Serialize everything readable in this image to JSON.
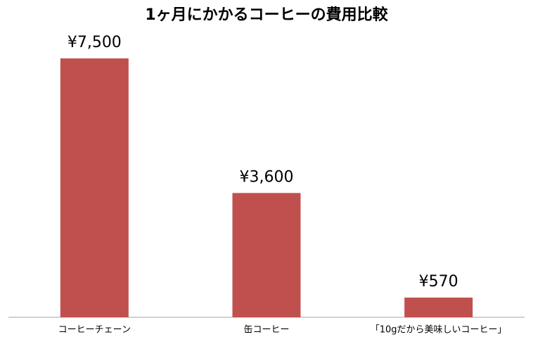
{
  "chart_data": {
    "type": "bar",
    "title": "1ヶ月にかかるコーヒーの費用比較",
    "categories": [
      "コーヒーチェーン",
      "缶コーヒー",
      "「10gだから美味しいコーヒー」"
    ],
    "values": [
      7500,
      3600,
      570
    ],
    "value_labels": [
      "¥7,500",
      "¥3,600",
      "¥570"
    ],
    "color": "#c0504d"
  }
}
